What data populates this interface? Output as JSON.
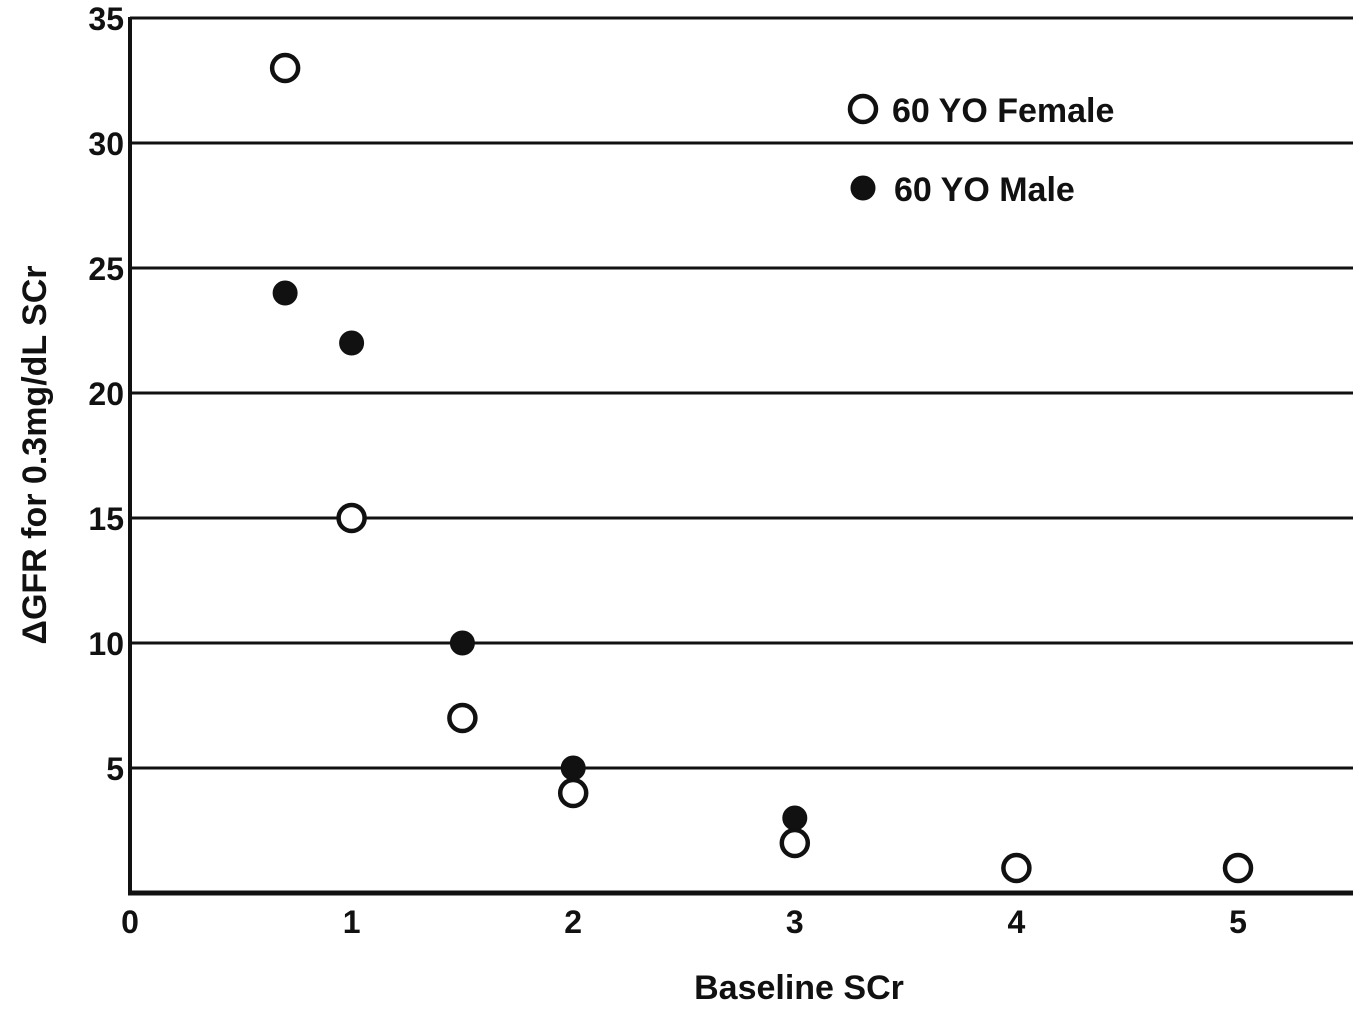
{
  "chart_data": {
    "type": "scatter",
    "title": "",
    "xlabel": "Baseline SCr",
    "ylabel": "ΔGFR for 0.3mg/dL SCr",
    "xlim": [
      0,
      5.5
    ],
    "ylim": [
      0,
      35
    ],
    "x_ticks": [
      0,
      1,
      2,
      3,
      4,
      5
    ],
    "y_ticks": [
      5,
      10,
      15,
      20,
      25,
      30,
      35
    ],
    "grid": "horizontal",
    "legend_position": "top-right",
    "series": [
      {
        "name": "60 YO Female",
        "marker": "open-circle",
        "color": "#111111",
        "points": [
          {
            "x": 0.7,
            "y": 33
          },
          {
            "x": 1.0,
            "y": 15
          },
          {
            "x": 1.5,
            "y": 7
          },
          {
            "x": 2.0,
            "y": 4
          },
          {
            "x": 3.0,
            "y": 2
          },
          {
            "x": 4.0,
            "y": 1
          },
          {
            "x": 5.0,
            "y": 1
          }
        ]
      },
      {
        "name": "60 YO Male",
        "marker": "filled-circle",
        "color": "#111111",
        "points": [
          {
            "x": 0.7,
            "y": 24
          },
          {
            "x": 1.0,
            "y": 22
          },
          {
            "x": 1.5,
            "y": 10
          },
          {
            "x": 2.0,
            "y": 5
          },
          {
            "x": 3.0,
            "y": 3
          }
        ]
      }
    ]
  }
}
